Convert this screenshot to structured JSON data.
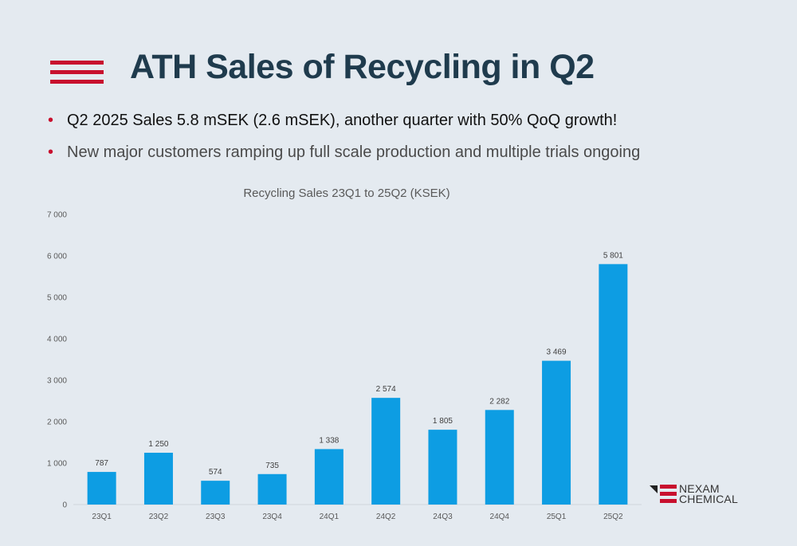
{
  "slide": {
    "title": "ATH Sales of Recycling in Q2",
    "bullets": [
      "Q2 2025 Sales 5.8 mSEK (2.6 mSEK), another quarter with 50% QoQ growth!",
      "New major customers ramping up full scale production and multiple trials ongoing"
    ],
    "bullet_glyph": "•",
    "accent_color": "#c8102e",
    "title_color": "#1f3b4d",
    "logo": {
      "line1": "NEXAM",
      "line2": "CHEMICAL"
    }
  },
  "chart_data": {
    "type": "bar",
    "title": "Recycling Sales 23Q1 to 25Q2 (KSEK)",
    "categories": [
      "23Q1",
      "23Q2",
      "23Q3",
      "23Q4",
      "24Q1",
      "24Q2",
      "24Q3",
      "24Q4",
      "25Q1",
      "25Q2"
    ],
    "values": [
      787,
      1250,
      574,
      735,
      1338,
      2574,
      1805,
      2282,
      3469,
      5801
    ],
    "data_labels": [
      "787",
      "1 250",
      "574",
      "735",
      "1 338",
      "2 574",
      "1 805",
      "2 282",
      "3 469",
      "5 801"
    ],
    "yticks": [
      0,
      1000,
      2000,
      3000,
      4000,
      5000,
      6000,
      7000
    ],
    "ytick_labels": [
      "0",
      "1 000",
      "2 000",
      "3 000",
      "4 000",
      "5 000",
      "6 000",
      "7 000"
    ],
    "ylim": [
      0,
      7000
    ],
    "bar_color": "#0d9de3",
    "grid": false,
    "legend": "none"
  }
}
